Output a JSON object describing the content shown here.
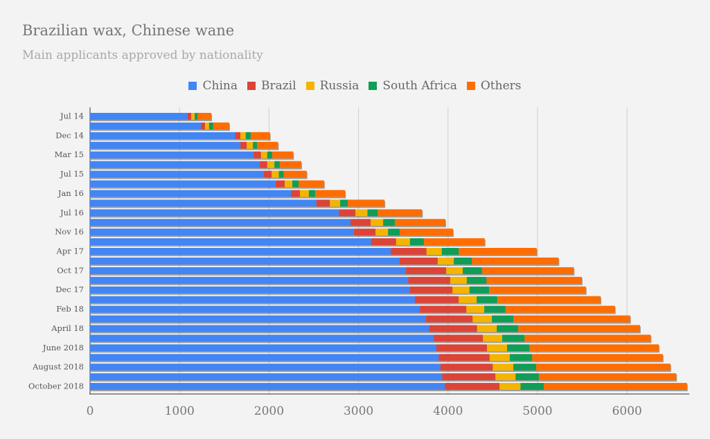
{
  "chart_data": {
    "type": "bar",
    "orientation": "horizontal",
    "stacked": true,
    "title": "Brazilian wax, Chinese wane",
    "subtitle": "Main applicants approved by nationality",
    "xlabel": "",
    "ylabel": "",
    "xlim": [
      0,
      6700
    ],
    "xticks": [
      "0",
      "1000",
      "2000",
      "3000",
      "4000",
      "5000",
      "6000"
    ],
    "xtick_values": [
      0,
      1000,
      2000,
      3000,
      4000,
      5000,
      6000
    ],
    "grid": true,
    "legend_position": "top-center",
    "categories": [
      "Jul 14",
      "",
      "Dec 14",
      "",
      "Mar 15",
      "",
      "Jul 15",
      "",
      "Jan 16",
      "",
      "Jul 16",
      "",
      "Nov 16",
      "",
      "Apr 17",
      "",
      "Oct 17",
      "",
      "Dec 17",
      "",
      "Feb 18",
      "",
      "April 18",
      "",
      "June 2018",
      "",
      "August 2018",
      "",
      "October 2018"
    ],
    "series": [
      {
        "name": "China",
        "color": "#4285f4",
        "values": [
          1090,
          1240,
          1620,
          1680,
          1825,
          1895,
          1940,
          2075,
          2245,
          2530,
          2780,
          2910,
          2950,
          3140,
          3360,
          3460,
          3530,
          3555,
          3575,
          3630,
          3685,
          3755,
          3790,
          3840,
          3870,
          3895,
          3915,
          3935,
          3965
        ]
      },
      {
        "name": "Brazil",
        "color": "#db4437",
        "values": [
          40,
          45,
          60,
          70,
          85,
          85,
          90,
          100,
          100,
          150,
          185,
          225,
          240,
          280,
          400,
          425,
          450,
          470,
          475,
          490,
          520,
          520,
          535,
          550,
          565,
          570,
          585,
          595,
          610
        ]
      },
      {
        "name": "Russia",
        "color": "#f4b400",
        "values": [
          40,
          45,
          60,
          70,
          70,
          80,
          80,
          85,
          100,
          115,
          135,
          140,
          140,
          155,
          170,
          180,
          185,
          185,
          190,
          200,
          200,
          215,
          220,
          215,
          225,
          225,
          230,
          225,
          235
        ]
      },
      {
        "name": "South Africa",
        "color": "#0f9d58",
        "values": [
          30,
          45,
          55,
          45,
          55,
          60,
          55,
          70,
          70,
          85,
          115,
          130,
          130,
          155,
          190,
          200,
          215,
          220,
          220,
          230,
          235,
          240,
          240,
          250,
          250,
          250,
          255,
          260,
          260
        ]
      },
      {
        "name": "Others",
        "color": "#ff6d00",
        "values": [
          155,
          180,
          215,
          235,
          235,
          240,
          255,
          285,
          335,
          410,
          495,
          565,
          595,
          680,
          870,
          970,
          1025,
          1065,
          1080,
          1155,
          1225,
          1305,
          1360,
          1410,
          1445,
          1460,
          1500,
          1535,
          1600
        ]
      }
    ]
  }
}
